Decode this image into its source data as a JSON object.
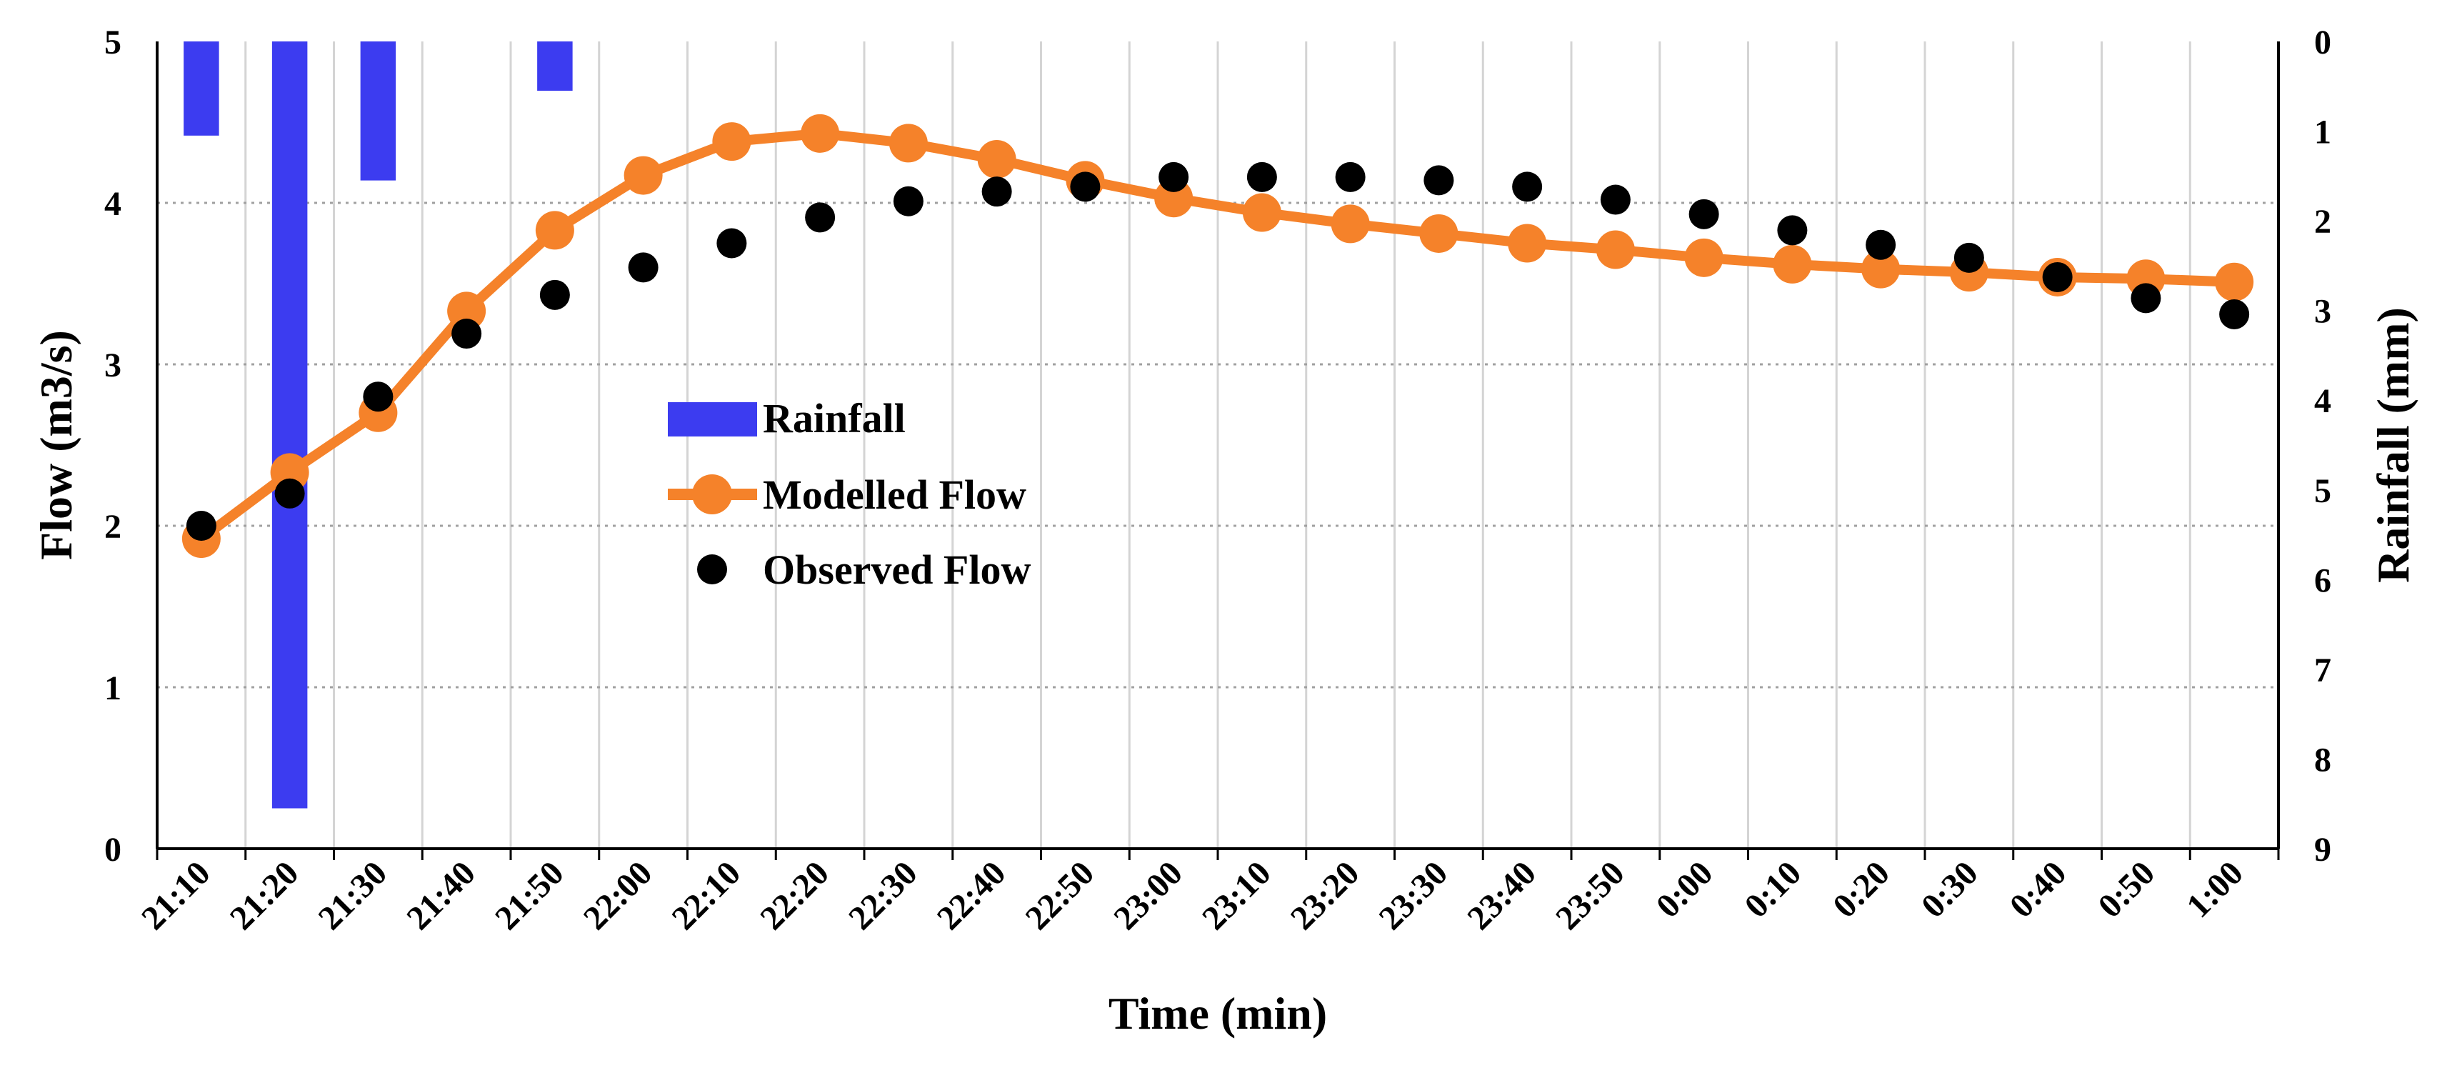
{
  "chart_data": {
    "type": "bar+line+scatter",
    "title": "",
    "xlabel": "Time (min)",
    "ylabel_left": "Flow (m3/s)",
    "ylabel_right": "Rainfall (mm)",
    "ylim_left": [
      0,
      5
    ],
    "ylim_right_inverted": [
      0,
      9
    ],
    "left_ticks": [
      "0",
      "1",
      "2",
      "3",
      "4",
      "5"
    ],
    "right_ticks": [
      "0",
      "1",
      "2",
      "3",
      "4",
      "5",
      "6",
      "7",
      "8",
      "9"
    ],
    "categories": [
      "21:10",
      "21:20",
      "21:30",
      "21:40",
      "21:50",
      "22:00",
      "22:10",
      "22:20",
      "22:30",
      "22:40",
      "22:50",
      "23:00",
      "23:10",
      "23:20",
      "23:30",
      "23:40",
      "23:50",
      "0:00",
      "0:10",
      "0:20",
      "0:30",
      "0:40",
      "0:50",
      "1:00"
    ],
    "series": [
      {
        "name": "Rainfall",
        "type": "bar",
        "axis": "right",
        "color": "#3c3cf0",
        "values": [
          1.05,
          8.55,
          1.55,
          0,
          0.55,
          0,
          0,
          0,
          0,
          0,
          0,
          0,
          0,
          0,
          0,
          0,
          0,
          0,
          0,
          0,
          0,
          0,
          0,
          0
        ]
      },
      {
        "name": "Modelled Flow",
        "type": "line",
        "axis": "left",
        "color": "#f5822a",
        "values": [
          1.92,
          2.33,
          2.7,
          3.33,
          3.83,
          4.17,
          4.38,
          4.43,
          4.37,
          4.27,
          4.14,
          4.03,
          3.94,
          3.87,
          3.81,
          3.75,
          3.71,
          3.66,
          3.62,
          3.59,
          3.57,
          3.54,
          3.53,
          3.51
        ]
      },
      {
        "name": "Observed Flow",
        "type": "scatter",
        "axis": "left",
        "color": "#000000",
        "values": [
          2.0,
          2.2,
          2.8,
          3.19,
          3.43,
          3.6,
          3.75,
          3.91,
          4.01,
          4.07,
          4.1,
          4.16,
          4.16,
          4.16,
          4.14,
          4.1,
          4.02,
          3.93,
          3.83,
          3.74,
          3.66,
          3.54,
          3.41,
          3.31
        ]
      }
    ],
    "legend": [
      "Rainfall",
      "Modelled Flow",
      "Observed Flow"
    ],
    "legend_position": "center-left",
    "grid": true
  }
}
